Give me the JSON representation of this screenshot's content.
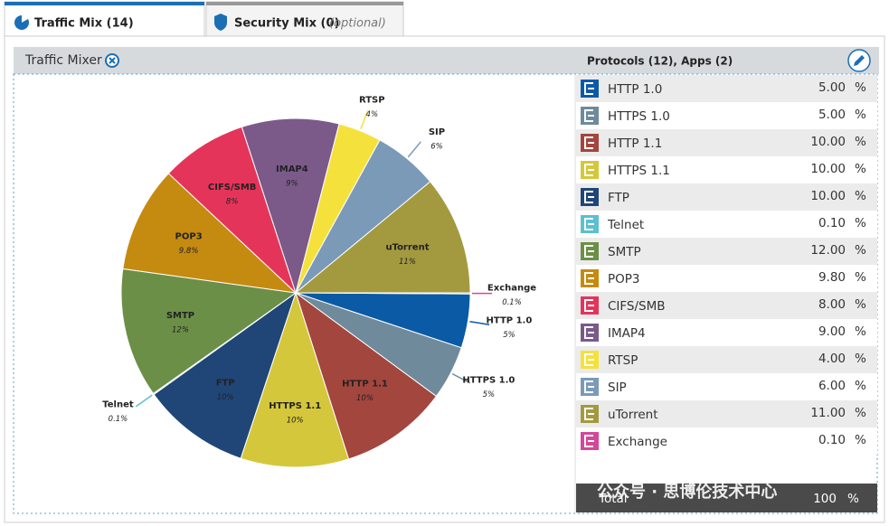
{
  "tabs": [
    {
      "label": "Traffic Mix (14)"
    },
    {
      "label": "Security Mix (0)",
      "note": "(optional)"
    }
  ],
  "panel": {
    "title": "Traffic Mixer",
    "list_title": "Protocols (12), Apps (2)"
  },
  "chart_data": {
    "type": "pie",
    "categories": [
      "HTTP 1.0",
      "HTTPS 1.0",
      "HTTP 1.1",
      "HTTPS 1.1",
      "FTP",
      "Telnet",
      "SMTP",
      "POP3",
      "CIFS/SMB",
      "IMAP4",
      "RTSP",
      "SIP",
      "uTorrent",
      "Exchange"
    ],
    "values": [
      5,
      5,
      10,
      10,
      10,
      0.1,
      12,
      9.8,
      8,
      9,
      4,
      6,
      11,
      0.1
    ],
    "value_labels": [
      "5%",
      "5%",
      "10%",
      "10%",
      "10%",
      "0.1%",
      "12%",
      "9.8%",
      "8%",
      "9%",
      "4%",
      "6%",
      "11%",
      "0.1%"
    ],
    "colors": [
      "#0b5aa6",
      "#6f8a9b",
      "#a2463e",
      "#d5c73b",
      "#1f4677",
      "#5bc0d0",
      "#6b8f47",
      "#c58a10",
      "#e5345a",
      "#7b5a8a",
      "#f5e13c",
      "#7a9ab8",
      "#a39a40",
      "#d4489a"
    ]
  },
  "table": {
    "rows": [
      [
        "HTTP 1.0",
        "5.00",
        "%"
      ],
      [
        "HTTPS 1.0",
        "5.00",
        "%"
      ],
      [
        "HTTP 1.1",
        "10.00",
        "%"
      ],
      [
        "HTTPS 1.1",
        "10.00",
        "%"
      ],
      [
        "FTP",
        "10.00",
        "%"
      ],
      [
        "Telnet",
        "0.10",
        "%"
      ],
      [
        "SMTP",
        "12.00",
        "%"
      ],
      [
        "POP3",
        "9.80",
        "%"
      ],
      [
        "CIFS/SMB",
        "8.00",
        "%"
      ],
      [
        "IMAP4",
        "9.00",
        "%"
      ],
      [
        "RTSP",
        "4.00",
        "%"
      ],
      [
        "SIP",
        "6.00",
        "%"
      ],
      [
        "uTorrent",
        "11.00",
        "%"
      ],
      [
        "Exchange",
        "0.10",
        "%"
      ]
    ],
    "total": [
      "Total",
      "100",
      "%"
    ]
  },
  "watermark": "公众号 · 思博伦技术中心"
}
